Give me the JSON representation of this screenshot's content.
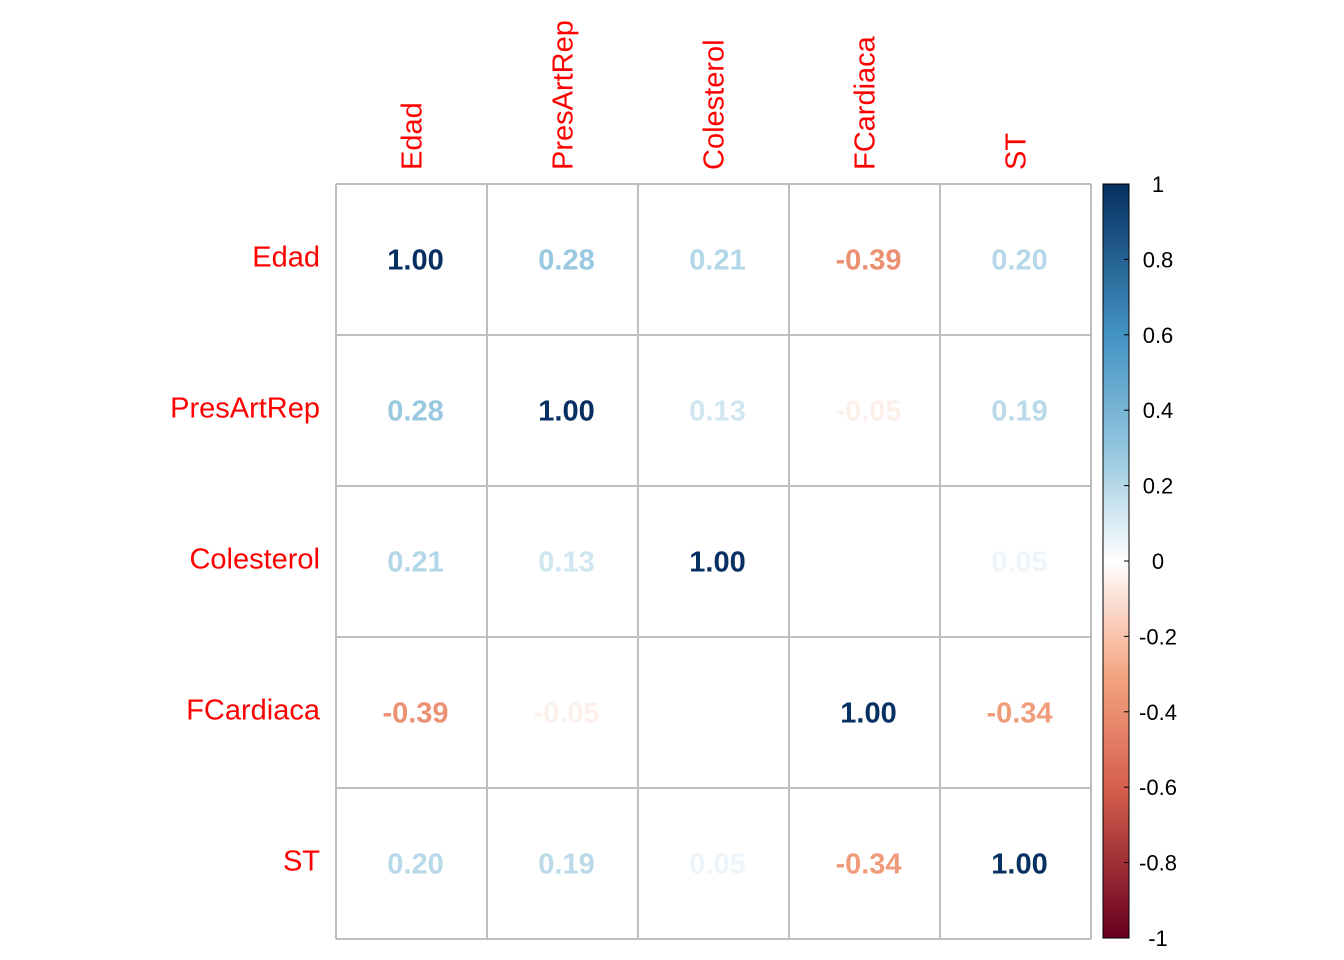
{
  "chart_data": {
    "type": "heatmap",
    "variables": [
      "Edad",
      "PresArtRep",
      "Colesterol",
      "FCardiaca",
      "ST"
    ],
    "matrix": [
      [
        "1.00",
        "0.28",
        "0.21",
        "-0.39",
        "0.20"
      ],
      [
        "0.28",
        "1.00",
        "0.13",
        "-0.05",
        "0.19"
      ],
      [
        "0.21",
        "0.13",
        "1.00",
        "0.00",
        "0.05"
      ],
      [
        "-0.39",
        "-0.05",
        "0.00",
        "1.00",
        "-0.34"
      ],
      [
        "0.20",
        "0.19",
        "0.05",
        "-0.34",
        "1.00"
      ]
    ],
    "colorbar_ticks": [
      "1",
      "0.8",
      "0.6",
      "0.4",
      "0.2",
      "0",
      "-0.2",
      "-0.4",
      "-0.6",
      "-0.8",
      "-1"
    ],
    "colorbar_range": [
      -1,
      1
    ],
    "label_color": "#FF0000",
    "grid_color": "#BEBEBE",
    "colors": {
      "neg_extreme": "#67001F",
      "neg_mid": "#D6604D",
      "neg_light": "#F4A582",
      "neutral": "#FFFFFF",
      "pos_light": "#92C5DE",
      "pos_mid": "#4393C3",
      "pos_extreme": "#053061"
    }
  }
}
